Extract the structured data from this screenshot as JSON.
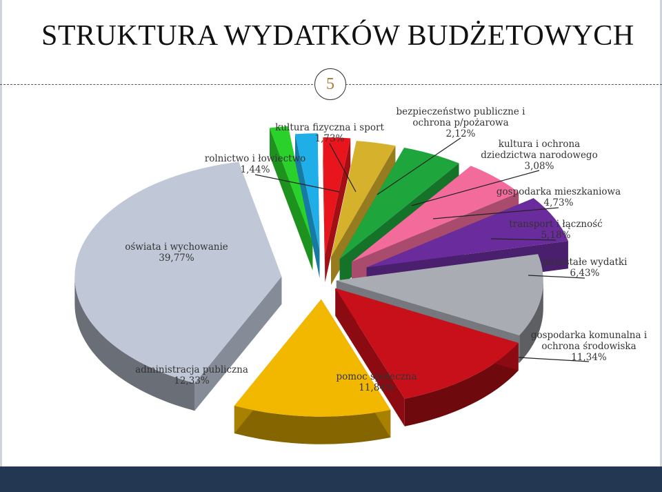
{
  "page": {
    "title": "STRUKTURA WYDATKÓW BUDŻETOWYCH",
    "page_number": "5"
  },
  "chart_data": {
    "type": "pie",
    "title": "",
    "slices": [
      {
        "label": [
          "rolnictwo i łowiectwo"
        ],
        "value_text": "1,44%",
        "value": 1.44,
        "color": "#2bd12b"
      },
      {
        "label": [
          "kultura fizyczna i sport"
        ],
        "value_text": "1,73%",
        "value": 1.73,
        "color": "#1faee8"
      },
      {
        "label": [
          "bezpieczeństwo publiczne i",
          "ochrona p/pożarowa"
        ],
        "value_text": "2,12%",
        "value": 2.12,
        "color": "#e8151c"
      },
      {
        "label": [
          "kultura i ochrona",
          "dziedzictwa narodowego"
        ],
        "value_text": "3,08%",
        "value": 3.08,
        "color": "#d6b12b"
      },
      {
        "label": [
          "gospodarka mieszkaniowa"
        ],
        "value_text": "4,73%",
        "value": 4.73,
        "color": "#1ea53b"
      },
      {
        "label": [
          "transport i łączność"
        ],
        "value_text": "5,18%",
        "value": 5.18,
        "color": "#f26b9b"
      },
      {
        "label": [
          "pozostałe wydatki"
        ],
        "value_text": "6,43%",
        "value": 6.43,
        "color": "#6a2c9c"
      },
      {
        "label": [
          "gospodarka komunalna i",
          "ochrona środowiska"
        ],
        "value_text": "11,34%",
        "value": 11.34,
        "color": "#a9acb3"
      },
      {
        "label": [
          "pomoc społeczna"
        ],
        "value_text": "11,84%",
        "value": 11.84,
        "color": "#c8101a"
      },
      {
        "label": [
          "administracja publiczna"
        ],
        "value_text": "12,33%",
        "value": 12.33,
        "color": "#f2b800"
      },
      {
        "label": [
          "oświata i wychowanie"
        ],
        "value_text": "39,77%",
        "value": 39.77,
        "color": "#c0c8d8"
      }
    ]
  }
}
